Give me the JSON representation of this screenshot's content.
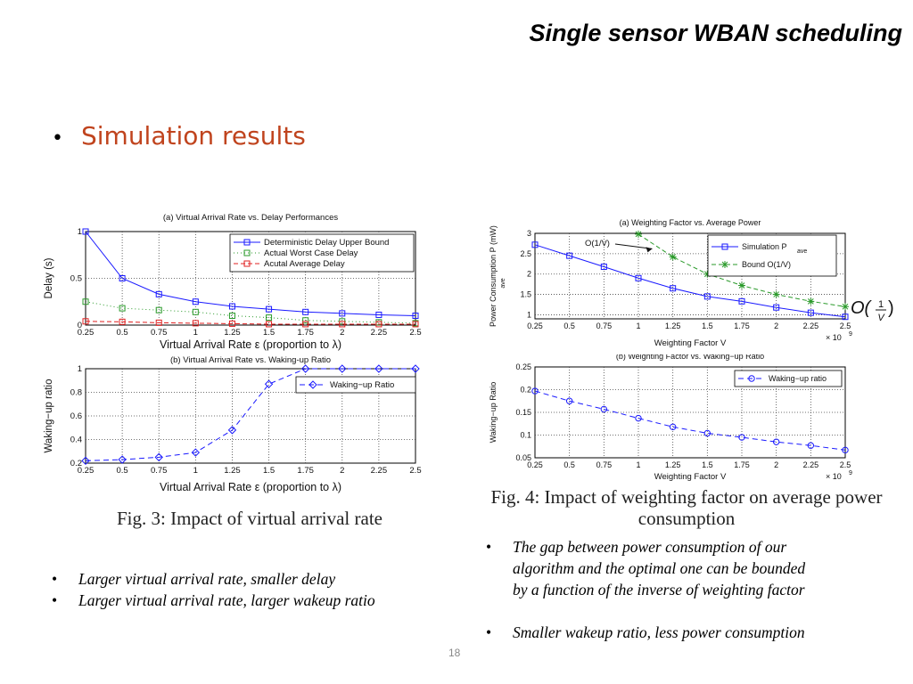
{
  "slide": {
    "title": "Single sensor WBAN scheduling",
    "bullet": "Simulation results",
    "bullet_color": "#c0441e",
    "page_number": "18"
  },
  "fig3": {
    "caption": "Fig. 3: Impact of virtual arrival rate",
    "notes": [
      "Larger virtual arrival rate, smaller delay",
      "Larger virtual arrival rate, larger wakeup ratio"
    ]
  },
  "fig4": {
    "caption_line1": "Fig. 4: Impact of weighting factor on average power",
    "caption_line2": "consumption",
    "annotation": "O(1/V)",
    "formula_main": "O(",
    "formula_num": "1",
    "formula_den": "V",
    "formula_close": ")",
    "notes": [
      "The gap between power consumption of our",
      "algorithm and the optimal one can be bounded",
      "by a function of the inverse of weighting factor"
    ],
    "note2": "Smaller wakeup ratio, less power consumption"
  },
  "chart_data": [
    {
      "id": "fig3a",
      "type": "line",
      "title": "(a) Virtual Arrival Rate vs. Delay Performances",
      "xlabel": "Virtual Arrival Rate ε (proportion to λ)",
      "ylabel": "Delay (s)",
      "x": [
        0.25,
        0.5,
        0.75,
        1,
        1.25,
        1.5,
        1.75,
        2,
        2.25,
        2.5
      ],
      "xtick_labels": [
        "0.25",
        "0.5",
        "0.75",
        "1",
        "1.25",
        "1.5",
        "1.75",
        "2",
        "2.25",
        "2.5"
      ],
      "xlim": [
        0.25,
        2.5
      ],
      "ylim": [
        0,
        1
      ],
      "yticks": [
        0,
        0.5,
        1
      ],
      "ytick_labels": [
        "0",
        "0.5",
        "1"
      ],
      "grid": true,
      "legend_position": "top-right",
      "series": [
        {
          "name": "Deterministic Delay Upper Bound",
          "color": "#1a1aff",
          "dash": "",
          "marker": "square",
          "values": [
            1.0,
            0.5,
            0.33,
            0.25,
            0.2,
            0.17,
            0.14,
            0.125,
            0.11,
            0.1
          ]
        },
        {
          "name": "Actual Worst Case Delay",
          "color": "#2a9a2a",
          "dash": "1,3",
          "marker": "square",
          "values": [
            0.25,
            0.18,
            0.16,
            0.14,
            0.1,
            0.08,
            0.05,
            0.04,
            0.03,
            0.02
          ]
        },
        {
          "name": "Acutal Average Delay",
          "color": "#e02020",
          "dash": "5,3",
          "marker": "square",
          "values": [
            0.04,
            0.035,
            0.025,
            0.02,
            0.015,
            0.01,
            0.01,
            0.01,
            0.01,
            0.01
          ]
        }
      ]
    },
    {
      "id": "fig3b",
      "type": "line",
      "title": "(b) Virtual Arrival Rate vs. Waking-up Ratio",
      "xlabel": "Virtual Arrival Rate ε (proportion to λ)",
      "ylabel": "Waking−up ratio",
      "x": [
        0.25,
        0.5,
        0.75,
        1,
        1.25,
        1.5,
        1.75,
        2,
        2.25,
        2.5
      ],
      "xtick_labels": [
        "0.25",
        "0.5",
        "0.75",
        "1",
        "1.25",
        "1.5",
        "1.75",
        "2",
        "2.25",
        "2.5"
      ],
      "xlim": [
        0.25,
        2.5
      ],
      "ylim": [
        0.2,
        1
      ],
      "yticks": [
        0.2,
        0.4,
        0.6,
        0.8,
        1
      ],
      "ytick_labels": [
        "0.2",
        "0.4",
        "0.6",
        "0.8",
        "1"
      ],
      "grid": true,
      "legend_position": "top-right",
      "series": [
        {
          "name": "Waking−up Ratio",
          "color": "#1a1aff",
          "dash": "6,4",
          "marker": "diamond",
          "values": [
            0.22,
            0.23,
            0.25,
            0.29,
            0.48,
            0.87,
            1.0,
            1.0,
            1.0,
            1.0
          ]
        }
      ]
    },
    {
      "id": "fig4a",
      "type": "line",
      "title": "(a) Weighting Factor vs. Average Power",
      "xlabel": "Weighting Factor V",
      "ylabel": "Power Consumption P (mW)",
      "ylabel_sub": "ave",
      "exponent_label": "× 10",
      "exponent_power": "9",
      "x": [
        0.25,
        0.5,
        0.75,
        1,
        1.25,
        1.5,
        1.75,
        2,
        2.25,
        2.5
      ],
      "xtick_labels": [
        "0.25",
        "0.5",
        "0.75",
        "1",
        "1.25",
        "1.5",
        "1.75",
        "2",
        "2.25",
        "2.5"
      ],
      "xlim": [
        0.25,
        2.5
      ],
      "ylim": [
        0.9,
        3
      ],
      "yticks": [
        1,
        1.5,
        2,
        2.5,
        3
      ],
      "ytick_labels": [
        "1",
        "1.5",
        "2",
        "2.5",
        "3"
      ],
      "grid": true,
      "legend_position": "top-right",
      "series": [
        {
          "name": "Simulation P",
          "name_sub": "ave",
          "color": "#1a1aff",
          "dash": "",
          "marker": "square",
          "values": [
            2.72,
            2.45,
            2.18,
            1.9,
            1.65,
            1.45,
            1.33,
            1.18,
            1.05,
            0.95
          ]
        },
        {
          "name": "Bound O(1/V)",
          "color": "#2a9a2a",
          "dash": "5,3",
          "marker": "star",
          "x": [
            1,
            1.25,
            1.5,
            1.75,
            2,
            2.25,
            2.5
          ],
          "values": [
            2.98,
            2.42,
            2.0,
            1.72,
            1.5,
            1.33,
            1.2
          ]
        }
      ]
    },
    {
      "id": "fig4b",
      "type": "line",
      "title": "(b) Weighting Factor vs. Waking−up Ratio",
      "xlabel": "Weighting Factor V",
      "ylabel": "Waking−up Ratio",
      "exponent_label": "× 10",
      "exponent_power": "9",
      "x": [
        0.25,
        0.5,
        0.75,
        1,
        1.25,
        1.5,
        1.75,
        2,
        2.25,
        2.5
      ],
      "xtick_labels": [
        "0.25",
        "0.5",
        "0.75",
        "1",
        "1.25",
        "1.5",
        "1.75",
        "2",
        "2.25",
        "2.5"
      ],
      "xlim": [
        0.25,
        2.5
      ],
      "ylim": [
        0.05,
        0.25
      ],
      "yticks": [
        0.05,
        0.1,
        0.15,
        0.2,
        0.25
      ],
      "ytick_labels": [
        "0.05",
        "0.1",
        "0.15",
        "0.2",
        "0.25"
      ],
      "grid": true,
      "legend_position": "top-right",
      "series": [
        {
          "name": "Waking−up ratio",
          "color": "#1a1aff",
          "dash": "6,4",
          "marker": "circle",
          "values": [
            0.197,
            0.175,
            0.157,
            0.137,
            0.118,
            0.104,
            0.095,
            0.085,
            0.077,
            0.067
          ]
        }
      ]
    }
  ]
}
